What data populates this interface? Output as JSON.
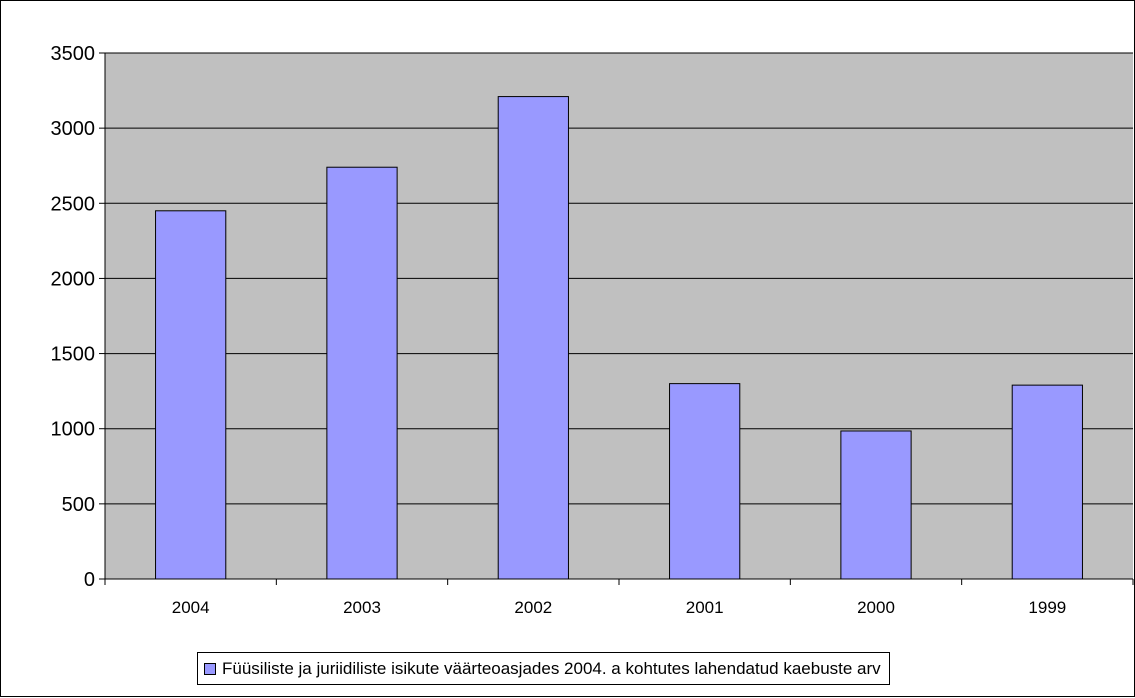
{
  "chart_data": {
    "type": "bar",
    "categories": [
      "2004",
      "2003",
      "2002",
      "2001",
      "2000",
      "1999"
    ],
    "series": [
      {
        "name": "Füüsiliste ja juriidiliste isikute väärteoasjades 2004. a kohtutes lahendatud kaebuste  arv",
        "values": [
          2450,
          2740,
          3210,
          1300,
          985,
          1290
        ],
        "color": "#9999ff"
      }
    ],
    "ylim": [
      0,
      3500
    ],
    "yticks": [
      "0",
      "500",
      "1000",
      "1500",
      "2000",
      "2500",
      "3000",
      "3500"
    ],
    "grid": true,
    "legend_position": "bottom",
    "plot_background": "#c0c0c0"
  }
}
